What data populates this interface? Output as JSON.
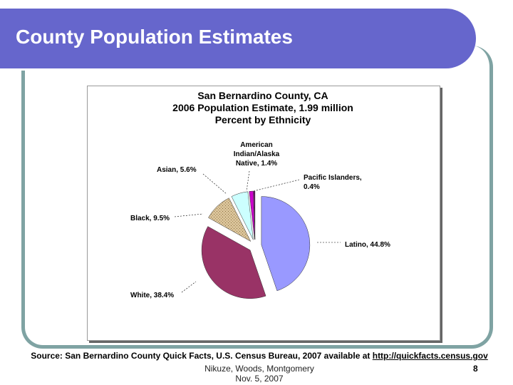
{
  "slide_title": "County Population Estimates",
  "chart_data": {
    "type": "pie",
    "title": [
      "San Bernardino County, CA",
      "2006 Population Estimate, 1.99 million",
      "Percent by Ethnicity"
    ],
    "categories": [
      "Latino, 44.8%",
      "White, 38.4%",
      "Black, 9.5%",
      "Asian, 5.6%",
      "American Indian/Alaska Native, 1.4%",
      "Pacific Islanders, 0.4%"
    ],
    "values": [
      44.8,
      38.4,
      9.5,
      5.6,
      1.4,
      0.4
    ],
    "colors": [
      "#9999ff",
      "#993366",
      "#d9c39a",
      "#ccffff",
      "#cc00cc",
      "#660066"
    ]
  },
  "source": "Source: San Bernardino County Quick Facts, U.S. Census Bureau, 2007 available at",
  "source_link": "http://quickfacts.census.gov",
  "footer": [
    "Nikuze, Woods, Montgomery",
    "Nov. 5, 2007"
  ],
  "page_number": "8"
}
